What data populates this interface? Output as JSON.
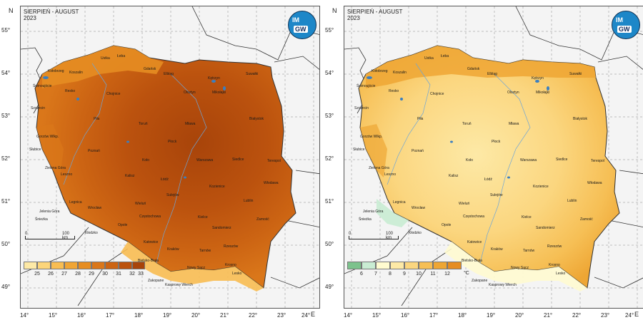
{
  "map": {
    "title_line1": "SIERPIEŃ - AUGUST",
    "title_line2": "2023",
    "logo_top": "IM",
    "logo_bottom": "GW",
    "north_letter": "N",
    "east_letter": "E",
    "latitudes": [
      "55°",
      "54°",
      "53°",
      "52°",
      "51°",
      "50°",
      "49°"
    ],
    "longitudes": [
      "14°",
      "15°",
      "16°",
      "17°",
      "18°",
      "19°",
      "20°",
      "21°",
      "22°",
      "23°",
      "24°"
    ],
    "scale": {
      "start": "0",
      "end": "100 km"
    },
    "cities": [
      "Łeba",
      "Ustka",
      "Kołobrzeg",
      "Koszalin",
      "Gdańsk",
      "Elbląg",
      "Kętrzyn",
      "Suwałki",
      "Świnoujście",
      "Resko",
      "Chojnice",
      "Olsztyn",
      "Mikołajki",
      "Szczecin",
      "Piła",
      "Toruń",
      "Mława",
      "Białystok",
      "Gorzów Wlkp.",
      "Płock",
      "Słubice",
      "Poznań",
      "Koło",
      "Warszawa",
      "Siedlce",
      "Terespol",
      "Zielona Góra",
      "Leszno",
      "Kalisz",
      "Łódź",
      "Włodawa",
      "Sulejów",
      "Kozienice",
      "Legnica",
      "Wrocław",
      "Wieluń",
      "Lublin",
      "Jelenia Góra",
      "Śnieżka",
      "Częstochowa",
      "Kielce",
      "Sandomierz",
      "Zamość",
      "Opole",
      "Kłodzko",
      "Katowice",
      "Rzeszów",
      "Kraków",
      "Tarnów",
      "Bielsko-Biała",
      "Nowy Sącz",
      "Krosno",
      "Lesko",
      "Zakopane",
      "Kasprowy Wierch"
    ]
  },
  "panels": [
    {
      "legend": {
        "ticks": [
          "25",
          "26",
          "27",
          "28",
          "29",
          "30",
          "31",
          "32",
          "33"
        ],
        "unit": "",
        "colors": [
          "#fde9a6",
          "#fcd57a",
          "#f8bd52",
          "#f0a535",
          "#e68d22",
          "#da771a",
          "#cc6413",
          "#bb520e",
          "#a8440a"
        ]
      }
    },
    {
      "legend": {
        "ticks": [
          "6",
          "7",
          "8",
          "9",
          "10",
          "11",
          "12"
        ],
        "unit": "°C",
        "colors": [
          "#7cc28c",
          "#c9ecd3",
          "#fffbd0",
          "#fde9a6",
          "#fbd67f",
          "#f6bf55",
          "#eea634",
          "#e58d22"
        ]
      }
    }
  ]
}
